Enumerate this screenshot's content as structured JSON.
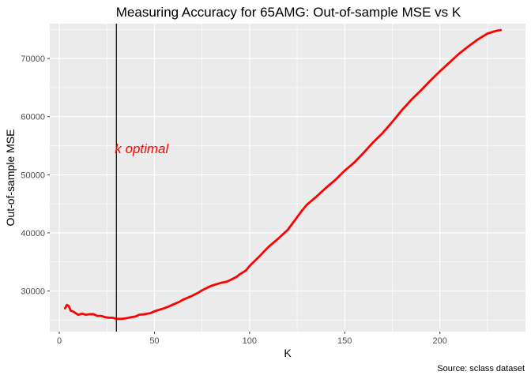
{
  "chart_data": {
    "type": "line",
    "title": "Measuring Accuracy for 65AMG: Out-of-sample MSE vs K",
    "xlabel": "K",
    "ylabel": "Out-of-sample MSE",
    "caption": "Source: sclass dataset",
    "xlim": [
      -5,
      245
    ],
    "ylim": [
      23000,
      76000
    ],
    "x_ticks": [
      0,
      50,
      100,
      150,
      200
    ],
    "y_ticks": [
      30000,
      40000,
      50000,
      60000,
      70000
    ],
    "grid": true,
    "vline": {
      "x": 30,
      "color": "#000000"
    },
    "annotation": {
      "text": "k optimal",
      "x": 30,
      "y": 54500,
      "color": "#ff0000"
    },
    "series": [
      {
        "color": "#ff0000",
        "x": [
          3,
          4,
          5,
          6,
          7,
          8,
          10,
          12,
          14,
          16,
          18,
          20,
          22,
          24,
          26,
          28,
          30,
          33,
          35,
          38,
          40,
          42,
          45,
          48,
          50,
          52,
          55,
          58,
          60,
          63,
          65,
          68,
          70,
          73,
          75,
          78,
          80,
          83,
          85,
          88,
          90,
          93,
          95,
          98,
          100,
          105,
          110,
          115,
          120,
          125,
          127,
          130,
          135,
          140,
          145,
          150,
          155,
          160,
          165,
          170,
          175,
          180,
          185,
          190,
          195,
          200,
          205,
          210,
          215,
          220,
          225,
          230,
          232
        ],
        "values": [
          27000,
          27600,
          27400,
          26600,
          26500,
          26300,
          25900,
          26100,
          25900,
          26000,
          26000,
          25700,
          25700,
          25500,
          25400,
          25400,
          25200,
          25200,
          25300,
          25500,
          25600,
          25900,
          26000,
          26200,
          26500,
          26700,
          27000,
          27400,
          27700,
          28100,
          28500,
          28900,
          29200,
          29700,
          30100,
          30600,
          30900,
          31200,
          31400,
          31600,
          31900,
          32400,
          32900,
          33500,
          34300,
          35900,
          37600,
          39000,
          40500,
          42700,
          43600,
          44800,
          46200,
          47700,
          49100,
          50700,
          52100,
          53800,
          55600,
          57200,
          59100,
          61100,
          62900,
          64500,
          66200,
          67800,
          69300,
          70800,
          72100,
          73300,
          74300,
          74800,
          74900
        ]
      }
    ]
  }
}
